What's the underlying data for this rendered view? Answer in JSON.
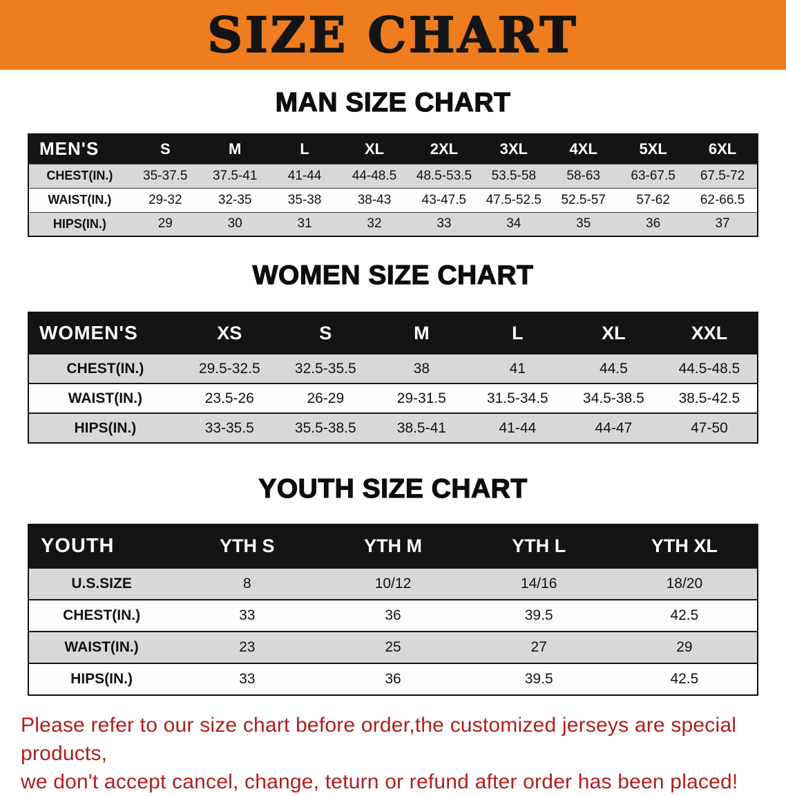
{
  "banner": {
    "title": "SIZE CHART",
    "bg_color": "#EF7C1E",
    "text_color": "#141414"
  },
  "chart_data": [
    {
      "type": "table",
      "title": "MAN SIZE CHART",
      "columns": [
        "MEN'S",
        "S",
        "M",
        "L",
        "XL",
        "2XL",
        "3XL",
        "4XL",
        "5XL",
        "6XL"
      ],
      "rows": [
        [
          "CHEST(IN.)",
          "35-37.5",
          "37.5-41",
          "41-44",
          "44-48.5",
          "48.5-53.5",
          "53.5-58",
          "58-63",
          "63-67.5",
          "67.5-72"
        ],
        [
          "WAIST(IN.)",
          "29-32",
          "32-35",
          "35-38",
          "38-43",
          "43-47.5",
          "47.5-52.5",
          "52.5-57",
          "57-62",
          "62-66.5"
        ],
        [
          "HIPS(IN.)",
          "29",
          "30",
          "31",
          "32",
          "33",
          "34",
          "35",
          "36",
          "37"
        ]
      ]
    },
    {
      "type": "table",
      "title": "WOMEN SIZE CHART",
      "columns": [
        "WOMEN'S",
        "XS",
        "S",
        "M",
        "L",
        "XL",
        "XXL"
      ],
      "rows": [
        [
          "CHEST(IN.)",
          "29.5-32.5",
          "32.5-35.5",
          "38",
          "41",
          "44.5",
          "44.5-48.5"
        ],
        [
          "WAIST(IN.)",
          "23.5-26",
          "26-29",
          "29-31.5",
          "31.5-34.5",
          "34.5-38.5",
          "38.5-42.5"
        ],
        [
          "HIPS(IN.)",
          "33-35.5",
          "35.5-38.5",
          "38.5-41",
          "41-44",
          "44-47",
          "47-50"
        ]
      ]
    },
    {
      "type": "table",
      "title": "YOUTH SIZE CHART",
      "columns": [
        "YOUTH",
        "YTH S",
        "YTH M",
        "YTH L",
        "YTH XL"
      ],
      "rows": [
        [
          "U.S.SIZE",
          "8",
          "10/12",
          "14/16",
          "18/20"
        ],
        [
          "CHEST(IN.)",
          "33",
          "36",
          "39.5",
          "42.5"
        ],
        [
          "WAIST(IN.)",
          "23",
          "25",
          "27",
          "29"
        ],
        [
          "HIPS(IN.)",
          "33",
          "36",
          "39.5",
          "42.5"
        ]
      ]
    }
  ],
  "disclaimer": {
    "line1": "Please refer to our size chart before order,the customized jerseys are special products,",
    "line2": "we don't accept cancel, change, teturn or refund after order has been placed!",
    "color": "#B01E1E"
  }
}
